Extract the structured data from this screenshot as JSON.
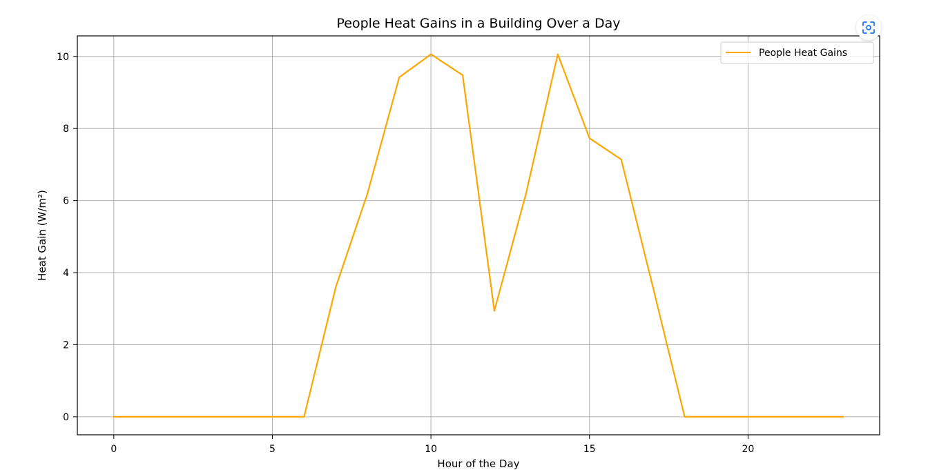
{
  "chart_data": {
    "type": "line",
    "title": "People Heat Gains in a Building Over a Day",
    "xlabel": "Hour of the Day",
    "ylabel": "Heat Gain (W/m²)",
    "xlim": [
      -1.15,
      24.15
    ],
    "ylim": [
      -0.5,
      10.57
    ],
    "xticks": [
      0,
      5,
      10,
      15,
      20
    ],
    "xtick_labels": [
      "0",
      "5",
      "10",
      "15",
      "20"
    ],
    "yticks": [
      0,
      2,
      4,
      6,
      8,
      10
    ],
    "ytick_labels": [
      "0",
      "2",
      "4",
      "6",
      "8",
      "10"
    ],
    "grid": true,
    "legend_position": "top-right",
    "x": [
      0,
      1,
      2,
      3,
      4,
      5,
      6,
      7,
      8,
      9,
      10,
      11,
      12,
      13,
      14,
      15,
      16,
      17,
      18,
      19,
      20,
      21,
      22,
      23
    ],
    "series": [
      {
        "name": "People Heat Gains",
        "color": "#ffa500",
        "values": [
          0,
          0,
          0,
          0,
          0,
          0,
          0,
          3.6,
          6.2,
          9.42,
          10.06,
          9.48,
          2.94,
          6.2,
          10.06,
          7.73,
          7.14,
          3.6,
          0,
          0,
          0,
          0,
          0,
          0
        ]
      }
    ]
  },
  "toolbar": {
    "lens_icon": "lens-scan-icon"
  }
}
